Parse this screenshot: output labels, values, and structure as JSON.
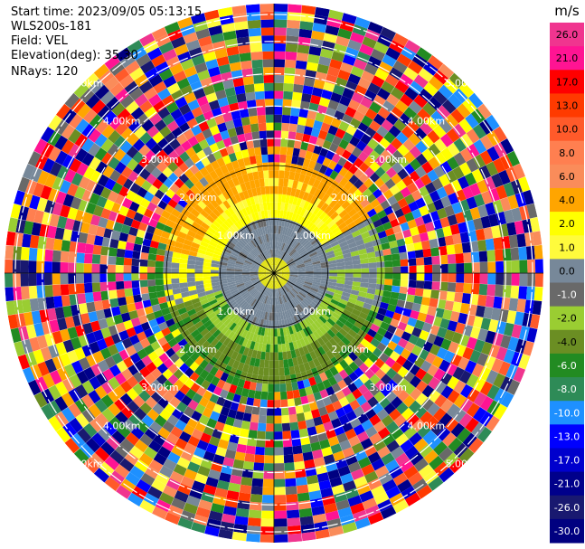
{
  "header": {
    "start_time": "Start time: 2023/09/05 05:13:15",
    "instrument": "WLS200s-181",
    "field": "Field: VEL",
    "elevation": "Elevation(deg): 35.30",
    "nrays": "NRays: 120"
  },
  "colorbar": {
    "unit": "m/s",
    "levels": [
      {
        "label": "26.0",
        "color": "#f0358f"
      },
      {
        "label": "21.0",
        "color": "#ff1493"
      },
      {
        "label": "17.0",
        "color": "#ff0000"
      },
      {
        "label": "13.0",
        "color": "#ff3a00"
      },
      {
        "label": "10.0",
        "color": "#ff5a2a"
      },
      {
        "label": "8.0",
        "color": "#ff7f50"
      },
      {
        "label": "6.0",
        "color": "#fa8c5a"
      },
      {
        "label": "4.0",
        "color": "#ffa500"
      },
      {
        "label": "2.0",
        "color": "#ffff00"
      },
      {
        "label": "1.0",
        "color": "#fffb3c"
      },
      {
        "label": "0.0",
        "color": "#778899"
      },
      {
        "label": "-1.0",
        "color": "#696969"
      },
      {
        "label": "-2.0",
        "color": "#9acd32"
      },
      {
        "label": "-4.0",
        "color": "#6b8e23"
      },
      {
        "label": "-6.0",
        "color": "#228b22"
      },
      {
        "label": "-8.0",
        "color": "#2e8b57"
      },
      {
        "label": "-10.0",
        "color": "#1e90ff"
      },
      {
        "label": "-13.0",
        "color": "#0000ff"
      },
      {
        "label": "-17.0",
        "color": "#0000cd"
      },
      {
        "label": "-21.0",
        "color": "#00008b"
      },
      {
        "label": "-26.0",
        "color": "#191970"
      },
      {
        "label": "-30.0",
        "color": "#000080"
      }
    ]
  },
  "range_rings": {
    "ring_labels": [
      "1.00km",
      "2.00km",
      "3.00km",
      "4.00km",
      "5.00km"
    ]
  }
}
